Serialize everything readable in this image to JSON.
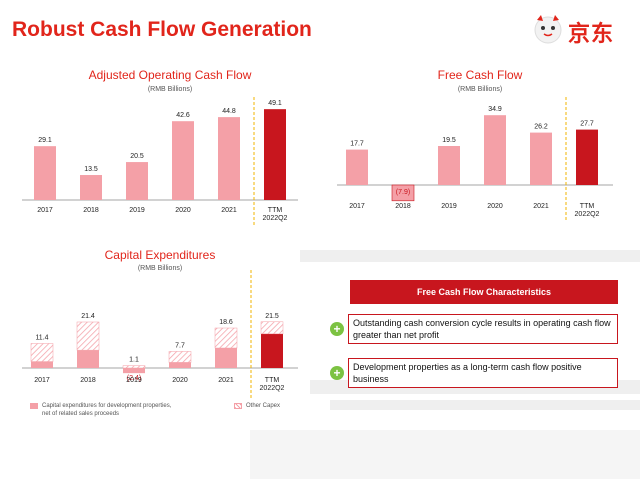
{
  "page": {
    "title": "Robust Cash Flow Generation",
    "logo_text": "京东"
  },
  "colors": {
    "accent": "#e1251b",
    "bar": "#f4a0a7",
    "ttm": "#c8161e",
    "hatch": "#f4a0a7",
    "green": "#7cc242"
  },
  "chart_data": [
    {
      "type": "bar",
      "title": "Adjusted Operating Cash Flow",
      "subtitle": "(RMB Billions)",
      "categories": [
        "2017",
        "2018",
        "2019",
        "2020",
        "2021",
        "TTM\n2022Q2"
      ],
      "values": [
        29.1,
        13.5,
        20.5,
        42.6,
        44.8,
        49.1
      ],
      "value_labels": [
        "29.1",
        "13.5",
        "20.5",
        "42.6",
        "44.8",
        "49.1"
      ],
      "highlight_last": true
    },
    {
      "type": "bar",
      "title": "Free Cash Flow",
      "subtitle": "(RMB Billions)",
      "categories": [
        "2017",
        "2018",
        "2019",
        "2020",
        "2021",
        "TTM\n2022Q2"
      ],
      "values": [
        17.7,
        -7.9,
        19.5,
        34.9,
        26.2,
        27.7
      ],
      "value_labels": [
        "17.7",
        "(7.9)",
        "19.5",
        "34.9",
        "26.2",
        "27.7"
      ],
      "highlight_last": true
    },
    {
      "type": "bar",
      "stacked": true,
      "title": "Capital Expenditures",
      "subtitle": "(RMB Billions)",
      "categories": [
        "2017",
        "2018",
        "2019",
        "2020",
        "2021",
        "TTM\n2022Q2"
      ],
      "series": [
        {
          "name": "Capital expenditures for development properties, net of related sales proceeds",
          "values": [
            3.0,
            8.3,
            -2.4,
            2.6,
            9.3,
            15.9
          ]
        },
        {
          "name": "Other Capex",
          "values": [
            8.4,
            13.1,
            3.5,
            5.1,
            9.3,
            5.6
          ]
        }
      ],
      "totals": [
        11.4,
        21.4,
        1.1,
        7.7,
        18.6,
        21.5
      ],
      "total_labels": [
        "11.4",
        "21.4",
        "1.1",
        "7.7",
        "18.6",
        "21.5"
      ],
      "negative_label": "(2.4)",
      "legend": [
        "Capital expenditures for development properties,\nnet of related sales proceeds",
        "Other Capex"
      ]
    }
  ],
  "fcf": {
    "header": "Free Cash Flow Characteristics",
    "items": [
      "Outstanding cash conversion cycle results in operating cash flow greater than net profit",
      "Development properties as a long-term cash flow positive business"
    ]
  }
}
